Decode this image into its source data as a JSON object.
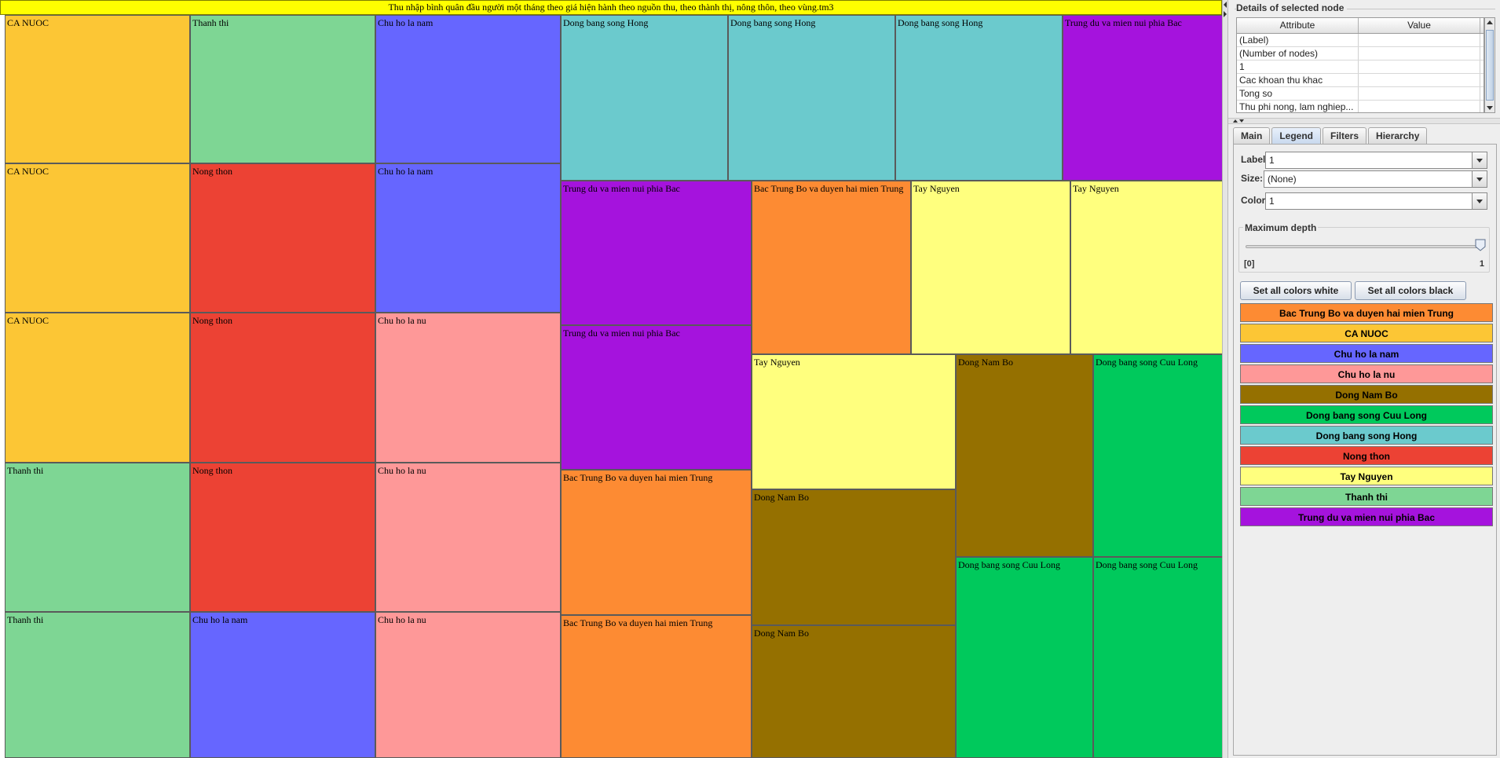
{
  "treemap": {
    "title": "Thu nhập bình quân đầu người một tháng theo giá hiện hành theo nguồn thu, theo thành thị, nông thôn, theo vùng.tm3",
    "cells": [
      {
        "label": "CA NUOC",
        "color": "#FCC635"
      },
      {
        "label": "Thanh thi",
        "color": "#7ED694"
      },
      {
        "label": "Chu ho la nam",
        "color": "#6666FF"
      },
      {
        "label": "Dong bang song Hong",
        "color": "#6BCACD"
      },
      {
        "label": "Dong bang song Hong",
        "color": "#6BCACD"
      },
      {
        "label": "Dong bang song Hong",
        "color": "#6BCACD"
      },
      {
        "label": "Trung du va mien nui phia Bac",
        "color": "#A513DD"
      },
      {
        "label": "CA NUOC",
        "color": "#FCC635"
      },
      {
        "label": "Nong thon",
        "color": "#EC4234"
      },
      {
        "label": "Chu ho la nam",
        "color": "#6666FF"
      },
      {
        "label": "Trung du va mien nui phia Bac",
        "color": "#A513DD"
      },
      {
        "label": "Bac Trung Bo va duyen hai mien Trung",
        "color": "#FD8B33"
      },
      {
        "label": "Tay Nguyen",
        "color": "#FFFF7E"
      },
      {
        "label": "Tay Nguyen",
        "color": "#FFFF7E"
      },
      {
        "label": "CA NUOC",
        "color": "#FCC635"
      },
      {
        "label": "Nong thon",
        "color": "#EC4234"
      },
      {
        "label": "Chu ho la nu",
        "color": "#FE9898"
      },
      {
        "label": "Trung du va mien nui phia Bac",
        "color": "#A513DD"
      },
      {
        "label": "Tay Nguyen",
        "color": "#FFFF7E"
      },
      {
        "label": "Dong Nam Bo",
        "color": "#957000"
      },
      {
        "label": "Dong bang song Cuu Long",
        "color": "#00C95C"
      },
      {
        "label": "Thanh thi",
        "color": "#7ED694"
      },
      {
        "label": "Nong thon",
        "color": "#EC4234"
      },
      {
        "label": "Chu ho la nu",
        "color": "#FE9898"
      },
      {
        "label": "Bac Trung Bo va duyen hai mien Trung",
        "color": "#FD8B33"
      },
      {
        "label": "Dong Nam Bo",
        "color": "#957000"
      },
      {
        "label": "Dong bang song Cuu Long",
        "color": "#00C95C"
      },
      {
        "label": "Dong bang song Cuu Long",
        "color": "#00C95C"
      },
      {
        "label": "Thanh thi",
        "color": "#7ED694"
      },
      {
        "label": "Chu ho la nam",
        "color": "#6666FF"
      },
      {
        "label": "Chu ho la nu",
        "color": "#FE9898"
      },
      {
        "label": "Bac Trung Bo va duyen hai mien Trung",
        "color": "#FD8B33"
      },
      {
        "label": "Dong Nam Bo",
        "color": "#957000"
      }
    ]
  },
  "details": {
    "title": "Details of selected node",
    "columns": [
      "Attribute",
      "Value"
    ],
    "rows": [
      {
        "attr": "(Label)",
        "value": ""
      },
      {
        "attr": "(Number of nodes)",
        "value": ""
      },
      {
        "attr": "1",
        "value": ""
      },
      {
        "attr": "Cac khoan thu khac",
        "value": ""
      },
      {
        "attr": "Tong so",
        "value": ""
      },
      {
        "attr": "Thu phi nong, lam nghiep...",
        "value": ""
      }
    ]
  },
  "tabs": [
    {
      "label": "Main",
      "active": false
    },
    {
      "label": "Legend",
      "active": true
    },
    {
      "label": "Filters",
      "active": false
    },
    {
      "label": "Hierarchy",
      "active": false
    }
  ],
  "legend_tab": {
    "label_caption": "Label:",
    "label_value": "1",
    "size_caption": "Size:",
    "size_value": "(None)",
    "color_caption": "Color:",
    "color_value": "1",
    "depth_title": "Maximum depth",
    "depth_min": "[0]",
    "depth_max": "1",
    "depth_level": 1.0,
    "btn_white": "Set all colors white",
    "btn_black": "Set all colors black",
    "items": [
      {
        "label": "Bac Trung Bo va duyen hai mien Trung",
        "color": "#FD8B33"
      },
      {
        "label": "CA NUOC",
        "color": "#FCC635"
      },
      {
        "label": "Chu ho la nam",
        "color": "#6666FF"
      },
      {
        "label": "Chu ho la nu",
        "color": "#FE9898"
      },
      {
        "label": "Dong Nam Bo",
        "color": "#957000"
      },
      {
        "label": "Dong bang song Cuu Long",
        "color": "#00C95C"
      },
      {
        "label": "Dong bang song Hong",
        "color": "#6BCACD"
      },
      {
        "label": "Nong thon",
        "color": "#EC4234"
      },
      {
        "label": "Tay Nguyen",
        "color": "#FFFF7E"
      },
      {
        "label": "Thanh thi",
        "color": "#7ED694"
      },
      {
        "label": "Trung du va mien nui phia Bac",
        "color": "#A513DD"
      }
    ]
  }
}
